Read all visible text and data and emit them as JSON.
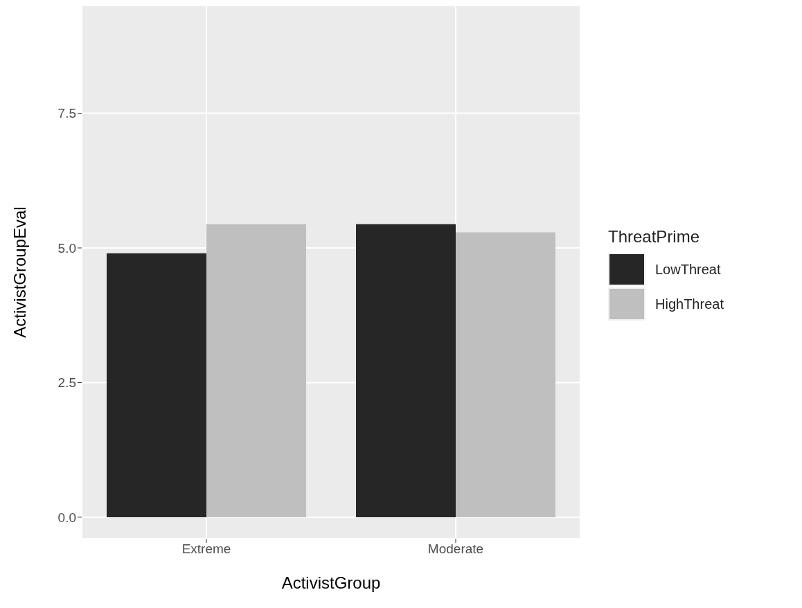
{
  "chart_data": {
    "type": "bar",
    "xlabel": "ActivistGroup",
    "ylabel": "ActivistGroupEval",
    "legend_title": "ThreatPrime",
    "categories": [
      "Extreme",
      "Moderate"
    ],
    "series": [
      {
        "name": "LowThreat",
        "color": "#262626",
        "values": [
          4.9,
          5.44
        ]
      },
      {
        "name": "HighThreat",
        "color": "#bfbfbf",
        "values": [
          5.44,
          5.29
        ]
      }
    ],
    "ylim": [
      -0.4,
      9.5
    ],
    "yticks": [
      {
        "value": 0,
        "label": "0.0"
      },
      {
        "value": 2.5,
        "label": "2.5"
      },
      {
        "value": 5,
        "label": "5.0"
      },
      {
        "value": 7.5,
        "label": "7.5"
      }
    ],
    "grid": true,
    "legend": "right"
  }
}
